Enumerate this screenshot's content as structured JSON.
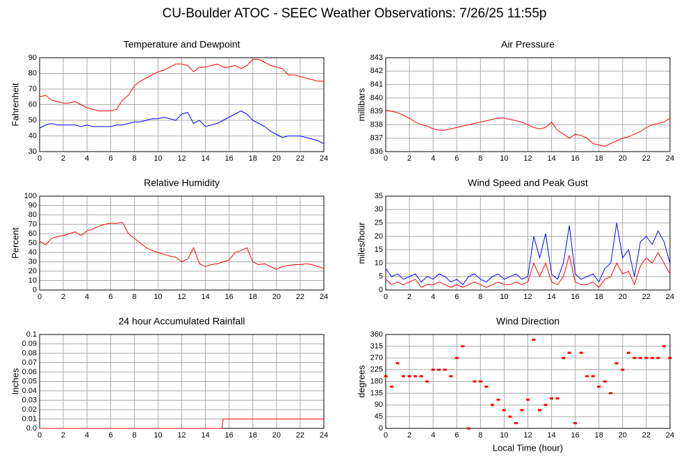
{
  "title": "CU-Boulder ATOC - SEEC Weather Observations: 7/26/25 11:55p",
  "chart_data": [
    {
      "type": "line",
      "title": "Temperature and Dewpoint",
      "y_label": "Fahrenheit",
      "x": [
        0,
        0.5,
        1,
        1.5,
        2,
        2.5,
        3,
        3.5,
        4,
        4.5,
        5,
        5.5,
        6,
        6.5,
        7,
        7.5,
        8,
        8.5,
        9,
        9.5,
        10,
        10.5,
        11,
        11.5,
        12,
        12.5,
        13,
        13.5,
        14,
        14.5,
        15,
        15.5,
        16,
        16.5,
        17,
        17.5,
        18,
        18.5,
        19,
        19.5,
        20,
        20.5,
        21,
        21.5,
        22,
        22.5,
        23,
        23.5,
        24
      ],
      "series": [
        {
          "color": "#ff0000",
          "values": [
            65,
            66,
            63,
            62,
            61,
            61,
            62,
            60,
            58,
            57,
            56,
            56,
            56,
            57,
            63,
            66,
            72,
            75,
            77,
            79,
            81,
            82,
            84,
            86,
            86,
            85,
            81,
            84,
            84,
            85,
            86,
            84,
            84,
            85,
            83,
            85,
            89,
            89,
            87,
            85,
            84,
            83,
            79,
            79,
            78,
            77,
            76,
            75,
            75
          ]
        },
        {
          "color": "#0000ff",
          "values": [
            45,
            47,
            48,
            47,
            47,
            47,
            47,
            46,
            47,
            46,
            46,
            46,
            46,
            47,
            47,
            48,
            49,
            49,
            50,
            51,
            51,
            52,
            51,
            50,
            54,
            55,
            48,
            50,
            46,
            47,
            48,
            50,
            52,
            54,
            56,
            54,
            50,
            48,
            46,
            43,
            41,
            39,
            40,
            40,
            40,
            39,
            38,
            37,
            35
          ]
        }
      ],
      "xlim": [
        0,
        24
      ],
      "xticks": [
        0,
        2,
        4,
        6,
        8,
        10,
        12,
        14,
        16,
        18,
        20,
        22,
        24
      ],
      "ylim": [
        30,
        90
      ],
      "yticks": [
        30,
        40,
        50,
        60,
        70,
        80,
        90
      ],
      "grid": true
    },
    {
      "type": "line",
      "title": "Air Pressure",
      "y_label": "millibars",
      "x": [
        0,
        0.5,
        1,
        1.5,
        2,
        2.5,
        3,
        3.5,
        4,
        4.5,
        5,
        5.5,
        6,
        6.5,
        7,
        7.5,
        8,
        8.5,
        9,
        9.5,
        10,
        10.5,
        11,
        11.5,
        12,
        12.5,
        13,
        13.5,
        14,
        14.5,
        15,
        15.5,
        16,
        16.5,
        17,
        17.5,
        18,
        18.5,
        19,
        19.5,
        20,
        20.5,
        21,
        21.5,
        22,
        22.5,
        23,
        23.5,
        24
      ],
      "series": [
        {
          "color": "#ff0000",
          "values": [
            839.1,
            839.0,
            838.9,
            838.7,
            838.5,
            838.2,
            838.0,
            837.9,
            837.7,
            837.6,
            837.6,
            837.7,
            837.8,
            837.9,
            838.0,
            838.1,
            838.2,
            838.3,
            838.4,
            838.5,
            838.5,
            838.4,
            838.3,
            838.2,
            838.0,
            837.8,
            837.7,
            837.8,
            838.2,
            837.6,
            837.3,
            837.0,
            837.3,
            837.2,
            837.0,
            836.6,
            836.5,
            836.4,
            836.6,
            836.8,
            837.0,
            837.1,
            837.3,
            837.5,
            837.8,
            838.0,
            838.1,
            838.2,
            838.5
          ]
        }
      ],
      "xlim": [
        0,
        24
      ],
      "xticks": [
        0,
        2,
        4,
        6,
        8,
        10,
        12,
        14,
        16,
        18,
        20,
        22,
        24
      ],
      "ylim": [
        836,
        843
      ],
      "yticks": [
        836,
        837,
        838,
        839,
        840,
        841,
        842,
        843
      ],
      "grid": true
    },
    {
      "type": "line",
      "title": "Relative Humidity",
      "y_label": "Percent",
      "x": [
        0,
        0.5,
        1,
        1.5,
        2,
        2.5,
        3,
        3.5,
        4,
        4.5,
        5,
        5.5,
        6,
        6.5,
        7,
        7.5,
        8,
        8.5,
        9,
        9.5,
        10,
        10.5,
        11,
        11.5,
        12,
        12.5,
        13,
        13.5,
        14,
        14.5,
        15,
        15.5,
        16,
        16.5,
        17,
        17.5,
        18,
        18.5,
        19,
        19.5,
        20,
        20.5,
        21,
        21.5,
        22,
        22.5,
        23,
        23.5,
        24
      ],
      "series": [
        {
          "color": "#ff0000",
          "values": [
            52,
            48,
            55,
            57,
            58,
            60,
            62,
            58,
            63,
            65,
            68,
            70,
            71,
            71,
            72,
            60,
            55,
            50,
            45,
            42,
            40,
            38,
            36,
            35,
            30,
            33,
            45,
            28,
            25,
            27,
            28,
            30,
            32,
            40,
            42,
            45,
            30,
            27,
            28,
            25,
            22,
            25,
            26,
            27,
            27,
            28,
            27,
            25,
            23
          ]
        }
      ],
      "xlim": [
        0,
        24
      ],
      "xticks": [
        0,
        2,
        4,
        6,
        8,
        10,
        12,
        14,
        16,
        18,
        20,
        22,
        24
      ],
      "ylim": [
        0,
        100
      ],
      "yticks": [
        0,
        10,
        20,
        30,
        40,
        50,
        60,
        70,
        80,
        90,
        100
      ],
      "grid": true
    },
    {
      "type": "line",
      "title": "Wind Speed and Peak Gust",
      "y_label": "miles/hour",
      "x": [
        0,
        0.5,
        1,
        1.5,
        2,
        2.5,
        3,
        3.5,
        4,
        4.5,
        5,
        5.5,
        6,
        6.5,
        7,
        7.5,
        8,
        8.5,
        9,
        9.5,
        10,
        10.5,
        11,
        11.5,
        12,
        12.5,
        13,
        13.5,
        14,
        14.5,
        15,
        15.5,
        16,
        16.5,
        17,
        17.5,
        18,
        18.5,
        19,
        19.5,
        20,
        20.5,
        21,
        21.5,
        22,
        22.5,
        23,
        23.5,
        24
      ],
      "series": [
        {
          "color": "#0000ff",
          "values": [
            8,
            5,
            6,
            4,
            5,
            6,
            3,
            5,
            4,
            6,
            5,
            3,
            4,
            2,
            5,
            6,
            4,
            3,
            5,
            6,
            4,
            5,
            6,
            4,
            5,
            20,
            12,
            21,
            6,
            4,
            10,
            24,
            6,
            4,
            5,
            6,
            3,
            8,
            10,
            25,
            12,
            15,
            5,
            18,
            20,
            17,
            22,
            18,
            10
          ]
        },
        {
          "color": "#ff0000",
          "values": [
            4,
            2,
            3,
            2,
            3,
            4,
            1,
            2,
            2,
            3,
            2,
            1,
            2,
            1,
            2,
            3,
            2,
            1,
            2,
            3,
            2,
            2,
            3,
            2,
            3,
            10,
            5,
            10,
            3,
            2,
            5,
            13,
            3,
            2,
            2,
            3,
            1,
            4,
            5,
            10,
            6,
            7,
            2,
            9,
            12,
            10,
            14,
            10,
            6
          ]
        }
      ],
      "xlim": [
        0,
        24
      ],
      "xticks": [
        0,
        2,
        4,
        6,
        8,
        10,
        12,
        14,
        16,
        18,
        20,
        22,
        24
      ],
      "ylim": [
        0,
        35
      ],
      "yticks": [
        0,
        5,
        10,
        15,
        20,
        25,
        30,
        35
      ],
      "grid": true
    },
    {
      "type": "line",
      "title": "24 hour Accumulated Rainfall",
      "y_label": "Inches",
      "x": [
        0,
        15.4,
        15.5,
        24
      ],
      "series": [
        {
          "color": "#ff0000",
          "values": [
            0,
            0,
            0.01,
            0.01
          ]
        }
      ],
      "xlim": [
        0,
        24
      ],
      "xticks": [
        0,
        2,
        4,
        6,
        8,
        10,
        12,
        14,
        16,
        18,
        20,
        22,
        24
      ],
      "ylim": [
        0,
        0.1
      ],
      "yticks": [
        {
          "value": 0,
          "label": "0.0"
        },
        0.01,
        0.02,
        0.03,
        0.04,
        0.05,
        0.06,
        0.07,
        0.08,
        0.09,
        0.1
      ],
      "grid": true
    },
    {
      "type": "scatter",
      "title": "Wind Direction",
      "y_label": "degrees",
      "x_label": "Local Time (hour)",
      "x": [
        0,
        0.5,
        1,
        1.5,
        2,
        2.5,
        3,
        3.5,
        4,
        4.5,
        5,
        5.5,
        6,
        6.5,
        7,
        7.5,
        8,
        8.5,
        9,
        9.5,
        10,
        10.5,
        11,
        11.5,
        12,
        12.5,
        13,
        13.5,
        14,
        14.5,
        15,
        15.5,
        16,
        16.5,
        17,
        17.5,
        18,
        18.5,
        19,
        19.5,
        20,
        20.5,
        21,
        21.5,
        22,
        22.5,
        23,
        23.5,
        24
      ],
      "series": [
        {
          "color": "#ff0000",
          "values": [
            200,
            160,
            250,
            200,
            200,
            200,
            200,
            180,
            225,
            225,
            225,
            200,
            270,
            315,
            0,
            180,
            180,
            160,
            90,
            110,
            70,
            45,
            20,
            70,
            110,
            340,
            70,
            90,
            115,
            115,
            270,
            290,
            20,
            290,
            200,
            200,
            160,
            180,
            135,
            250,
            225,
            290,
            270,
            270,
            270,
            270,
            270,
            315,
            270
          ]
        }
      ],
      "xlim": [
        0,
        24
      ],
      "xticks": [
        0,
        2,
        4,
        6,
        8,
        10,
        12,
        14,
        16,
        18,
        20,
        22,
        24
      ],
      "ylim": [
        0,
        360
      ],
      "yticks": [
        0,
        45,
        90,
        135,
        180,
        225,
        270,
        315,
        360
      ],
      "grid": true
    }
  ]
}
